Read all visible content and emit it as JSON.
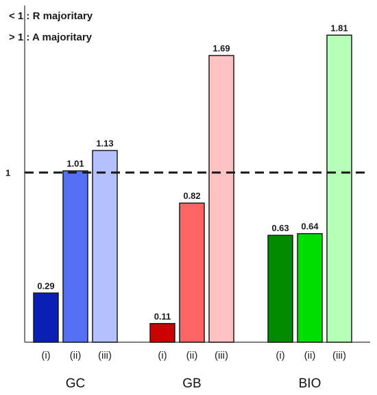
{
  "legend": {
    "line1": "< 1 : R majoritary",
    "line2": "> 1 : A majoritary"
  },
  "chart_data": {
    "type": "bar",
    "title": "",
    "xlabel": "",
    "ylabel": "",
    "ylim": [
      0,
      1.9
    ],
    "yticks": [
      1
    ],
    "ytick_labels": [
      "1"
    ],
    "reference_line": {
      "value": 1,
      "style": "dashed"
    },
    "grid": false,
    "legend_placement": "top-left",
    "groups": [
      {
        "name": "GC",
        "categories": [
          "(i)",
          "(ii)",
          "(iii)"
        ],
        "values": [
          0.29,
          1.01,
          1.13
        ],
        "value_labels": [
          "0.29",
          "1.01",
          "1.13"
        ],
        "colors": [
          "#0a1fb4",
          "#5470f5",
          "#b4c0ff"
        ]
      },
      {
        "name": "GB",
        "categories": [
          "(i)",
          "(ii)",
          "(iii)"
        ],
        "values": [
          0.11,
          0.82,
          1.69
        ],
        "value_labels": [
          "0.11",
          "0.82",
          "1.69"
        ],
        "colors": [
          "#cc0000",
          "#ff6565",
          "#ffc2c2"
        ]
      },
      {
        "name": "BIO",
        "categories": [
          "(i)",
          "(ii)",
          "(iii)"
        ],
        "values": [
          0.63,
          0.64,
          1.81
        ],
        "value_labels": [
          "0.63",
          "0.64",
          "1.81"
        ],
        "colors": [
          "#008a00",
          "#00dd00",
          "#b6ffb6"
        ]
      }
    ]
  }
}
